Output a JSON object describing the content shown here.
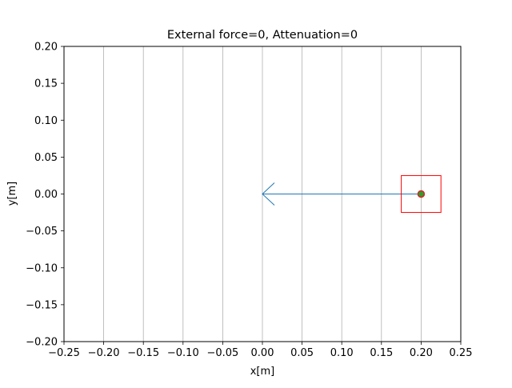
{
  "chart_data": {
    "type": "scatter",
    "title": "External force=0, Attenuation=0",
    "xlabel": "x[m]",
    "ylabel": "y[m]",
    "xlim": [
      -0.25,
      0.25
    ],
    "ylim": [
      -0.2,
      0.2
    ],
    "xticks": [
      "−0.25",
      "−0.20",
      "−0.15",
      "−0.10",
      "−0.05",
      "0.00",
      "0.05",
      "0.10",
      "0.15",
      "0.20",
      "0.25"
    ],
    "xtick_values": [
      -0.25,
      -0.2,
      -0.15,
      -0.1,
      -0.05,
      0.0,
      0.05,
      0.1,
      0.15,
      0.2,
      0.25
    ],
    "yticks": [
      "−0.20",
      "−0.15",
      "−0.10",
      "−0.05",
      "0.00",
      "0.05",
      "0.10",
      "0.15",
      "0.20"
    ],
    "ytick_values": [
      -0.2,
      -0.15,
      -0.1,
      -0.05,
      0.0,
      0.05,
      0.1,
      0.15,
      0.2
    ],
    "grid": "x-only",
    "vertical_gridlines": [
      -0.2,
      -0.15,
      -0.1,
      -0.05,
      0.0,
      0.05,
      0.1,
      0.15,
      0.2
    ],
    "point": {
      "x": 0.2,
      "y": 0.0
    },
    "box": {
      "x": [
        0.175,
        0.225
      ],
      "y": [
        -0.025,
        0.025
      ]
    },
    "arrow": {
      "from": [
        0.2,
        0.0
      ],
      "to": [
        0.0,
        0.0
      ]
    },
    "colors": {
      "arrow": "#1f77b4",
      "box": "#ff0000",
      "point_fill": "#2ca02c",
      "point_edge": "#d62728",
      "grid": "#b0b0b0",
      "axes": "#000000"
    }
  }
}
